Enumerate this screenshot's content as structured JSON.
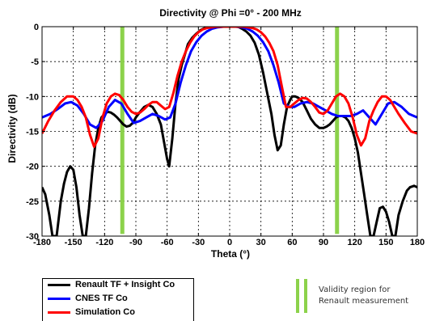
{
  "chart_data": {
    "type": "line",
    "title": "Directivity  @ Phi =0° - 200 MHz",
    "xlabel": "Theta (°)",
    "ylabel": "Directivity (dB)",
    "xlim": [
      -180,
      180
    ],
    "ylim": [
      -30,
      0
    ],
    "xticks": [
      -180,
      -150,
      -120,
      -90,
      -60,
      -30,
      0,
      30,
      60,
      90,
      120,
      150,
      180
    ],
    "yticks": [
      0,
      -5,
      -10,
      -15,
      -20,
      -25,
      -30
    ],
    "grid": true,
    "series": [
      {
        "name": "Renault TF + Insight Co",
        "color": "#000000",
        "x": [
          -180,
          -177,
          -173,
          -170,
          -166,
          -162,
          -159,
          -156,
          -153,
          -150,
          -147,
          -144,
          -141,
          -138,
          -135,
          -132,
          -129,
          -126,
          -123,
          -120,
          -117,
          -114,
          -111,
          -108,
          -105,
          -102,
          -99,
          -96,
          -93,
          -90,
          -86,
          -82,
          -78,
          -74,
          -70,
          -66,
          -63,
          -60,
          -58,
          -55,
          -52,
          -49,
          -46,
          -43,
          -40,
          -36,
          -32,
          -28,
          -24,
          -20,
          -16,
          -12,
          -8,
          -4,
          0,
          4,
          8,
          12,
          16,
          20,
          24,
          28,
          32,
          36,
          40,
          43,
          46,
          49,
          52,
          55,
          58,
          60,
          63,
          66,
          70,
          74,
          78,
          82,
          86,
          90,
          93,
          96,
          99,
          102,
          105,
          108,
          111,
          114,
          117,
          120,
          123,
          126,
          129,
          132,
          135,
          138,
          141,
          144,
          147,
          150,
          153,
          156,
          159,
          162,
          166,
          170,
          173,
          177,
          180
        ],
        "y": [
          -23,
          -24,
          -27,
          -30,
          -30,
          -25,
          -22.5,
          -20.8,
          -20,
          -20.5,
          -23,
          -27,
          -30,
          -30,
          -26,
          -21,
          -17,
          -14.5,
          -13,
          -12.5,
          -12.2,
          -12.3,
          -12.6,
          -13,
          -13.5,
          -14,
          -14.3,
          -14.2,
          -13.8,
          -13,
          -12.2,
          -11.5,
          -11.2,
          -11.5,
          -12.5,
          -14,
          -16.5,
          -19,
          -20,
          -16,
          -11,
          -7.5,
          -5.5,
          -4,
          -2.5,
          -1.6,
          -1,
          -0.5,
          -0.2,
          0,
          0,
          0,
          0,
          0,
          0,
          0,
          0,
          -0.3,
          -0.7,
          -1.3,
          -2.3,
          -4,
          -6.5,
          -9.5,
          -12.5,
          -15.5,
          -17.7,
          -17,
          -14,
          -11.5,
          -10.5,
          -10,
          -10,
          -10.2,
          -10.8,
          -12,
          -13.2,
          -14,
          -14.5,
          -14.5,
          -14.3,
          -14,
          -13.5,
          -13,
          -12.8,
          -12.8,
          -13,
          -13.5,
          -14.5,
          -16,
          -18,
          -21,
          -24,
          -27,
          -30,
          -30,
          -28,
          -26,
          -25.8,
          -26.5,
          -28,
          -30,
          -30,
          -27,
          -25,
          -23.5,
          -23,
          -22.8,
          -23
        ]
      },
      {
        "name": "CNES TF Co",
        "color": "#0000ff",
        "x": [
          -180,
          -172,
          -165,
          -158,
          -152,
          -146,
          -140,
          -134,
          -128,
          -122,
          -116,
          -110,
          -104,
          -98,
          -92,
          -86,
          -80,
          -74,
          -68,
          -62,
          -57,
          -52,
          -47,
          -42,
          -37,
          -32,
          -27,
          -22,
          -17,
          -12,
          -6,
          0,
          6,
          12,
          17,
          22,
          27,
          32,
          37,
          42,
          47,
          52,
          57,
          62,
          68,
          74,
          80,
          86,
          92,
          98,
          104,
          110,
          116,
          122,
          128,
          134,
          140,
          146,
          152,
          158,
          165,
          172,
          180
        ],
        "y": [
          -13,
          -12.5,
          -11.8,
          -11,
          -10.8,
          -11.3,
          -12.5,
          -14,
          -14.5,
          -13.5,
          -11.5,
          -10.5,
          -11,
          -12.5,
          -13.8,
          -13.5,
          -13,
          -12.5,
          -12.8,
          -13.3,
          -13,
          -11,
          -8,
          -5.5,
          -3.5,
          -2.2,
          -1.3,
          -0.7,
          -0.3,
          -0.1,
          0,
          0,
          0,
          -0.1,
          -0.3,
          -0.7,
          -1.3,
          -2.2,
          -3.5,
          -5.5,
          -8,
          -11,
          -11.5,
          -11.5,
          -11,
          -10.8,
          -11,
          -11.5,
          -12,
          -12.5,
          -12.8,
          -12.8,
          -12.8,
          -12.5,
          -12,
          -13,
          -14,
          -12.5,
          -11,
          -10.8,
          -11.5,
          -12.5,
          -13
        ]
      },
      {
        "name": "Simulation Co",
        "color": "#ff0000",
        "x": [
          -180,
          -174,
          -168,
          -162,
          -156,
          -150,
          -146,
          -142,
          -138,
          -134,
          -130,
          -126,
          -122,
          -118,
          -114,
          -110,
          -106,
          -102,
          -98,
          -94,
          -90,
          -86,
          -82,
          -78,
          -74,
          -70,
          -66,
          -62,
          -58,
          -54,
          -50,
          -46,
          -42,
          -38,
          -34,
          -30,
          -26,
          -22,
          -18,
          -14,
          -10,
          -6,
          -2,
          0,
          2,
          6,
          10,
          14,
          18,
          22,
          26,
          30,
          34,
          38,
          42,
          46,
          50,
          54,
          58,
          62,
          66,
          70,
          74,
          78,
          82,
          86,
          90,
          94,
          98,
          102,
          106,
          110,
          114,
          118,
          122,
          126,
          130,
          134,
          138,
          142,
          146,
          150,
          154,
          158,
          162,
          168,
          174,
          180
        ],
        "y": [
          -15.3,
          -13.5,
          -12,
          -10.8,
          -10,
          -10,
          -10.5,
          -11.5,
          -13,
          -15.5,
          -17.2,
          -16,
          -13,
          -11,
          -10,
          -9.6,
          -9.8,
          -10.5,
          -11.5,
          -12.2,
          -12.5,
          -12.3,
          -11.8,
          -11.2,
          -10.8,
          -10.8,
          -11.3,
          -11.8,
          -11.5,
          -9.5,
          -7,
          -5,
          -3.5,
          -2.3,
          -1.4,
          -0.8,
          -0.4,
          -0.2,
          -0.1,
          0,
          0,
          0,
          0,
          0,
          0,
          0,
          0,
          0,
          -0.1,
          -0.2,
          -0.4,
          -0.8,
          -1.4,
          -2.3,
          -3.5,
          -5.5,
          -8.5,
          -11.5,
          -11.5,
          -11,
          -10.5,
          -10.2,
          -10.3,
          -10.8,
          -11.5,
          -12.3,
          -12.5,
          -12,
          -11,
          -10,
          -9.6,
          -10,
          -11,
          -13,
          -15.5,
          -17,
          -16,
          -13.5,
          -12,
          -10.8,
          -10,
          -10,
          -10.5,
          -11.5,
          -12.5,
          -13.8,
          -15,
          -15.3
        ]
      }
    ],
    "validity_markers": {
      "x": [
        -103,
        103
      ],
      "color": "#8cd24b",
      "label": "Validity region for Renault measurement"
    }
  },
  "legend": {
    "validity_line1": "Validity region for",
    "validity_line2": "Renault measurement"
  }
}
